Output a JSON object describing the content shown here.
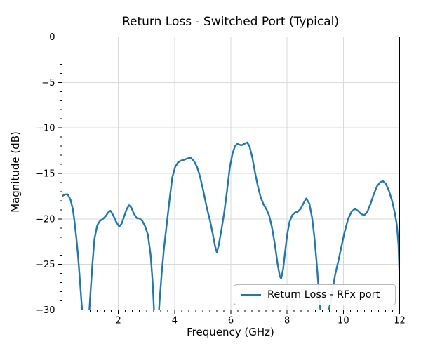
{
  "chart_data": {
    "type": "line",
    "title": "Return Loss - Switched Port (Typical)",
    "xlabel": "Frequency (GHz)",
    "ylabel": "Magnitude (dB)",
    "xlim": [
      0,
      12
    ],
    "ylim": [
      -30,
      0
    ],
    "grid": "major-both",
    "grid_color": "#d9d9d9",
    "axis_color": "#000000",
    "x_major_ticks": [
      2,
      4,
      6,
      8,
      10,
      12
    ],
    "x_tick_labels": [
      "2",
      "4",
      "6",
      "8",
      "10",
      "12"
    ],
    "x_minor_step": 0.25,
    "y_major_ticks": [
      0,
      -5,
      -10,
      -15,
      -20,
      -25,
      -30
    ],
    "y_tick_labels": [
      "0",
      "−5",
      "−10",
      "−15",
      "−20",
      "−25",
      "−30"
    ],
    "y_minor_step": 1,
    "legend": {
      "label": "Return Loss - RFx port",
      "position": "lower right"
    },
    "series": [
      {
        "name": "Return Loss - RFx port",
        "color": "#1f77b4",
        "points": [
          [
            0.0,
            -17.5
          ],
          [
            0.1,
            -17.3
          ],
          [
            0.2,
            -17.3
          ],
          [
            0.3,
            -17.9
          ],
          [
            0.38,
            -18.9
          ],
          [
            0.43,
            -20.0
          ],
          [
            0.5,
            -21.9
          ],
          [
            0.56,
            -23.8
          ],
          [
            0.62,
            -26.2
          ],
          [
            0.68,
            -28.8
          ],
          [
            0.73,
            -30.6
          ],
          [
            0.79,
            -32.6
          ],
          [
            0.85,
            -33.4
          ],
          [
            0.91,
            -32.2
          ],
          [
            0.97,
            -30.0
          ],
          [
            1.02,
            -27.6
          ],
          [
            1.08,
            -24.9
          ],
          [
            1.15,
            -22.2
          ],
          [
            1.25,
            -20.7
          ],
          [
            1.35,
            -20.2
          ],
          [
            1.45,
            -20.0
          ],
          [
            1.55,
            -19.7
          ],
          [
            1.65,
            -19.25
          ],
          [
            1.72,
            -19.1
          ],
          [
            1.8,
            -19.5
          ],
          [
            1.92,
            -20.3
          ],
          [
            2.03,
            -20.85
          ],
          [
            2.12,
            -20.5
          ],
          [
            2.22,
            -19.6
          ],
          [
            2.3,
            -18.9
          ],
          [
            2.38,
            -18.5
          ],
          [
            2.46,
            -18.75
          ],
          [
            2.55,
            -19.4
          ],
          [
            2.65,
            -19.9
          ],
          [
            2.75,
            -19.95
          ],
          [
            2.85,
            -20.2
          ],
          [
            2.95,
            -20.8
          ],
          [
            3.05,
            -21.7
          ],
          [
            3.15,
            -24.0
          ],
          [
            3.22,
            -27.0
          ],
          [
            3.28,
            -30.8
          ],
          [
            3.34,
            -33.2
          ],
          [
            3.41,
            -31.6
          ],
          [
            3.47,
            -28.9
          ],
          [
            3.54,
            -26.0
          ],
          [
            3.62,
            -23.3
          ],
          [
            3.72,
            -20.6
          ],
          [
            3.82,
            -17.9
          ],
          [
            3.92,
            -15.4
          ],
          [
            4.02,
            -14.3
          ],
          [
            4.12,
            -13.8
          ],
          [
            4.22,
            -13.6
          ],
          [
            4.34,
            -13.5
          ],
          [
            4.46,
            -13.35
          ],
          [
            4.58,
            -13.3
          ],
          [
            4.68,
            -13.6
          ],
          [
            4.8,
            -14.3
          ],
          [
            4.9,
            -15.3
          ],
          [
            5.02,
            -16.9
          ],
          [
            5.14,
            -18.7
          ],
          [
            5.26,
            -20.2
          ],
          [
            5.36,
            -21.7
          ],
          [
            5.44,
            -23.0
          ],
          [
            5.5,
            -23.65
          ],
          [
            5.57,
            -22.9
          ],
          [
            5.66,
            -21.3
          ],
          [
            5.76,
            -19.4
          ],
          [
            5.86,
            -17.0
          ],
          [
            5.96,
            -14.4
          ],
          [
            6.06,
            -12.8
          ],
          [
            6.15,
            -12.0
          ],
          [
            6.23,
            -11.75
          ],
          [
            6.31,
            -11.85
          ],
          [
            6.39,
            -11.9
          ],
          [
            6.48,
            -11.75
          ],
          [
            6.58,
            -11.6
          ],
          [
            6.66,
            -12.0
          ],
          [
            6.76,
            -13.2
          ],
          [
            6.86,
            -14.9
          ],
          [
            6.96,
            -16.4
          ],
          [
            7.06,
            -17.6
          ],
          [
            7.16,
            -18.4
          ],
          [
            7.26,
            -18.9
          ],
          [
            7.36,
            -19.6
          ],
          [
            7.46,
            -20.9
          ],
          [
            7.56,
            -22.7
          ],
          [
            7.66,
            -24.9
          ],
          [
            7.74,
            -26.3
          ],
          [
            7.79,
            -26.55
          ],
          [
            7.86,
            -25.5
          ],
          [
            7.93,
            -23.6
          ],
          [
            8.01,
            -21.6
          ],
          [
            8.09,
            -20.3
          ],
          [
            8.18,
            -19.6
          ],
          [
            8.28,
            -19.3
          ],
          [
            8.38,
            -19.2
          ],
          [
            8.48,
            -18.9
          ],
          [
            8.58,
            -18.3
          ],
          [
            8.68,
            -17.75
          ],
          [
            8.79,
            -18.3
          ],
          [
            8.89,
            -19.9
          ],
          [
            8.97,
            -22.0
          ],
          [
            9.05,
            -24.8
          ],
          [
            9.12,
            -27.6
          ],
          [
            9.19,
            -30.3
          ],
          [
            9.26,
            -32.6
          ],
          [
            9.32,
            -33.3
          ],
          [
            9.39,
            -32.3
          ],
          [
            9.46,
            -30.3
          ],
          [
            9.54,
            -29.2
          ],
          [
            9.62,
            -27.7
          ],
          [
            9.71,
            -26.1
          ],
          [
            9.81,
            -24.8
          ],
          [
            9.92,
            -23.2
          ],
          [
            10.04,
            -21.5
          ],
          [
            10.17,
            -20.0
          ],
          [
            10.29,
            -19.2
          ],
          [
            10.41,
            -18.9
          ],
          [
            10.52,
            -19.1
          ],
          [
            10.63,
            -19.45
          ],
          [
            10.74,
            -19.6
          ],
          [
            10.85,
            -19.25
          ],
          [
            10.96,
            -18.4
          ],
          [
            11.08,
            -17.3
          ],
          [
            11.2,
            -16.4
          ],
          [
            11.32,
            -15.95
          ],
          [
            11.41,
            -15.85
          ],
          [
            11.51,
            -16.15
          ],
          [
            11.62,
            -16.9
          ],
          [
            11.73,
            -18.0
          ],
          [
            11.82,
            -19.2
          ],
          [
            11.9,
            -20.6
          ],
          [
            11.96,
            -22.8
          ],
          [
            12.0,
            -26.6
          ]
        ]
      }
    ]
  }
}
